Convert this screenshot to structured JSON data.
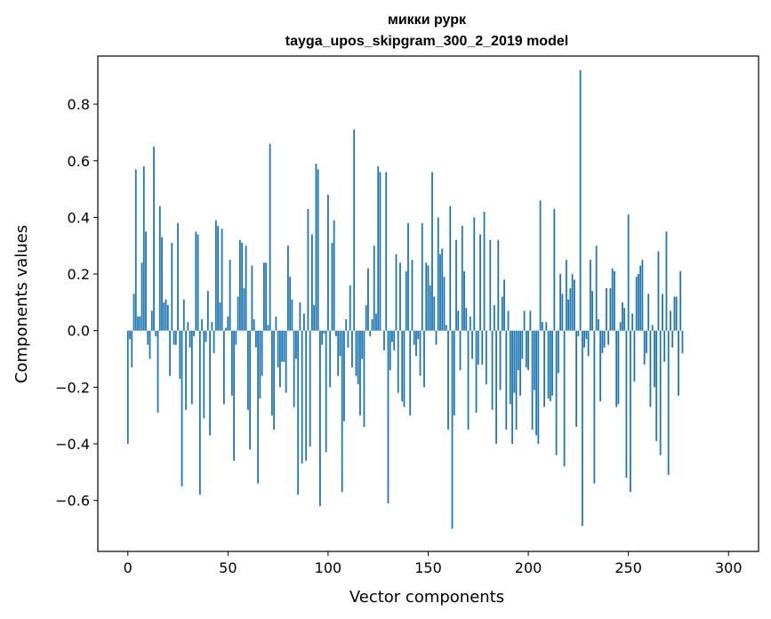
{
  "chart_data": {
    "type": "bar",
    "title_line1": "микки рурк",
    "title_line2": "tayga_upos_skipgram_300_2_2019 model",
    "xlabel": "Vector components",
    "ylabel": "Components values",
    "xlim": [
      -15,
      315
    ],
    "ylim": [
      -0.78,
      0.97
    ],
    "xticks": [
      0,
      50,
      100,
      150,
      200,
      250,
      300
    ],
    "yticks": [
      -0.6,
      -0.4,
      -0.2,
      0.0,
      0.2,
      0.4,
      0.6,
      0.8
    ],
    "ytick_labels": [
      "−0.6",
      "−0.4",
      "−0.2",
      "0.0",
      "0.2",
      "0.4",
      "0.6",
      "0.8"
    ],
    "bar_color": "#1f77b4",
    "grid": false,
    "values": [
      -0.4,
      -0.03,
      -0.13,
      0.13,
      0.57,
      0.05,
      0.05,
      0.24,
      0.58,
      0.35,
      -0.05,
      -0.1,
      0.07,
      0.65,
      -0.02,
      -0.29,
      0.44,
      0.33,
      0.1,
      0.11,
      0.09,
      -0.16,
      0.31,
      -0.05,
      -0.05,
      0.38,
      -0.17,
      -0.55,
      0.11,
      -0.28,
      0.03,
      -0.06,
      -0.26,
      -0.02,
      0.35,
      0.34,
      -0.58,
      0.04,
      -0.31,
      -0.04,
      0.14,
      -0.37,
      0.03,
      -0.08,
      0.39,
      0.37,
      0.1,
      0.36,
      -0.26,
      0.01,
      0.05,
      0.25,
      -0.23,
      -0.46,
      -0.05,
      0.12,
      0.32,
      0.31,
      0.15,
      0.3,
      -0.28,
      -0.42,
      0.23,
      0.04,
      -0.06,
      -0.54,
      -0.24,
      -0.16,
      0.24,
      0.24,
      0.02,
      0.66,
      -0.3,
      -0.35,
      0.05,
      -0.13,
      -0.2,
      -0.11,
      -0.11,
      -0.22,
      0.3,
      0.19,
      0.11,
      -0.27,
      -0.1,
      -0.58,
      0.1,
      -0.47,
      0.06,
      -0.46,
      0.43,
      -0.41,
      0.34,
      0.09,
      0.59,
      0.57,
      -0.62,
      -0.05,
      -0.01,
      -0.43,
      0.48,
      -0.2,
      0.31,
      0.39,
      -0.02,
      -0.16,
      -0.09,
      -0.57,
      -0.32,
      0.04,
      -0.06,
      0.16,
      -0.13,
      0.71,
      -0.16,
      -0.19,
      -0.3,
      -0.1,
      -0.34,
      0.09,
      0.22,
      -0.02,
      0.04,
      0.3,
      0.06,
      0.58,
      0.56,
      0.0,
      -0.07,
      0.56,
      -0.61,
      -0.14,
      -0.04,
      -0.07,
      0.27,
      -0.22,
      0.24,
      -0.25,
      -0.27,
      0.21,
      0.38,
      -0.3,
      0.25,
      -0.05,
      -0.09,
      -0.03,
      -0.16,
      0.38,
      -0.2,
      0.24,
      0.23,
      0.16,
      0.56,
      0.12,
      -0.05,
      0.4,
      0.27,
      0.29,
      0.19,
      0.02,
      -0.35,
      0.44,
      -0.7,
      -0.3,
      0.32,
      0.07,
      -0.14,
      0.37,
      0.21,
      0.08,
      -0.35,
      0.05,
      -0.1,
      0.4,
      -0.29,
      -0.12,
      0.34,
      -0.12,
      0.42,
      -0.19,
      0.0,
      0.32,
      -0.28,
      0.09,
      -0.4,
      0.32,
      -0.21,
      0.12,
      0.18,
      -0.35,
      0.07,
      -0.26,
      -0.4,
      -0.22,
      -0.35,
      -0.14,
      -0.23,
      -0.1,
      0.07,
      -0.13,
      -0.14,
      0.07,
      -0.35,
      -0.21,
      -0.37,
      -0.4,
      0.46,
      0.03,
      -0.27,
      0.03,
      -0.24,
      -0.25,
      -0.23,
      0.43,
      -0.44,
      -0.15,
      0.2,
      0.13,
      -0.48,
      0.25,
      0.11,
      0.15,
      0.2,
      0.18,
      -0.34,
      -0.02,
      0.92,
      -0.69,
      -0.06,
      -0.03,
      -0.09,
      0.25,
      0.14,
      -0.54,
      0.3,
      0.04,
      -0.25,
      -0.08,
      -0.06,
      0.15,
      -0.05,
      0.15,
      0.22,
      0.21,
      -0.27,
      -0.26,
      0.03,
      0.1,
      0.08,
      -0.52,
      0.41,
      -0.57,
      0.06,
      -0.18,
      0.19,
      0.2,
      0.23,
      0.25,
      -0.12,
      -0.08,
      0.13,
      -0.27,
      0.02,
      -0.2,
      -0.39,
      0.28,
      -0.44,
      0.13,
      -0.11,
      0.35,
      -0.51,
      0.07,
      -0.06,
      0.12,
      0.12,
      -0.23,
      0.21,
      -0.08
    ]
  }
}
